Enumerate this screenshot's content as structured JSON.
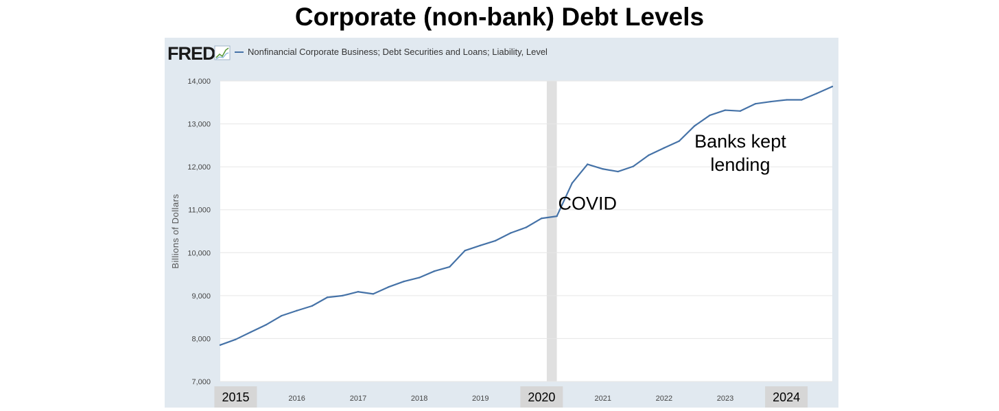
{
  "title": "Corporate (non-bank) Debt Levels",
  "source_logo": "FRED",
  "chart_data": {
    "type": "line",
    "series": [
      {
        "name": "Nonfinancial Corporate Business; Debt Securities and Loans; Liability, Level",
        "color": "#4572a7",
        "points": [
          [
            "2014-10-01",
            7850
          ],
          [
            "2015-01-01",
            7980
          ],
          [
            "2015-04-01",
            8150
          ],
          [
            "2015-07-01",
            8320
          ],
          [
            "2015-10-01",
            8530
          ],
          [
            "2016-01-01",
            8650
          ],
          [
            "2016-04-01",
            8760
          ],
          [
            "2016-07-01",
            8960
          ],
          [
            "2016-10-01",
            9000
          ],
          [
            "2017-01-01",
            9090
          ],
          [
            "2017-04-01",
            9040
          ],
          [
            "2017-07-01",
            9200
          ],
          [
            "2017-10-01",
            9330
          ],
          [
            "2018-01-01",
            9420
          ],
          [
            "2018-04-01",
            9570
          ],
          [
            "2018-07-01",
            9670
          ],
          [
            "2018-10-01",
            10050
          ],
          [
            "2019-01-01",
            10170
          ],
          [
            "2019-04-01",
            10280
          ],
          [
            "2019-07-01",
            10460
          ],
          [
            "2019-10-01",
            10590
          ],
          [
            "2020-01-01",
            10800
          ],
          [
            "2020-04-01",
            10850
          ],
          [
            "2020-07-01",
            11620
          ],
          [
            "2020-10-01",
            12060
          ],
          [
            "2021-01-01",
            11950
          ],
          [
            "2021-04-01",
            11890
          ],
          [
            "2021-07-01",
            12010
          ],
          [
            "2021-10-01",
            12270
          ],
          [
            "2022-01-01",
            12440
          ],
          [
            "2022-04-01",
            12600
          ],
          [
            "2022-07-01",
            12950
          ],
          [
            "2022-10-01",
            13200
          ],
          [
            "2023-01-01",
            13320
          ],
          [
            "2023-04-01",
            13300
          ],
          [
            "2023-07-01",
            13470
          ],
          [
            "2023-10-01",
            13520
          ],
          [
            "2024-01-01",
            13560
          ],
          [
            "2024-04-01",
            13560
          ],
          [
            "2024-07-01",
            13710
          ],
          [
            "2024-10-01",
            13870
          ]
        ]
      }
    ],
    "ylabel": "Billions of Dollars",
    "ylim": [
      7000,
      14000
    ],
    "y_ticks": [
      7000,
      8000,
      9000,
      10000,
      11000,
      12000,
      13000,
      14000
    ],
    "y_tick_labels": [
      "7,000",
      "8,000",
      "9,000",
      "10,000",
      "11,000",
      "12,000",
      "13,000",
      "14,000"
    ],
    "xlim": [
      "2014-10-01",
      "2024-10-01"
    ],
    "x_ticks": [
      {
        "label": "2015",
        "date": "2015-01-01",
        "highlight": true
      },
      {
        "label": "2016",
        "date": "2016-01-01",
        "highlight": false
      },
      {
        "label": "2017",
        "date": "2017-01-01",
        "highlight": false
      },
      {
        "label": "2018",
        "date": "2018-01-01",
        "highlight": false
      },
      {
        "label": "2019",
        "date": "2019-01-01",
        "highlight": false
      },
      {
        "label": "2020",
        "date": "2020-01-01",
        "highlight": true
      },
      {
        "label": "2021",
        "date": "2021-01-01",
        "highlight": false
      },
      {
        "label": "2022",
        "date": "2022-01-01",
        "highlight": false
      },
      {
        "label": "2023",
        "date": "2023-01-01",
        "highlight": false
      },
      {
        "label": "2024",
        "date": "2024-01-01",
        "highlight": true
      }
    ],
    "recession_band": {
      "start": "2020-02-01",
      "end": "2020-04-01",
      "color": "#e0e0e0"
    },
    "annotations": [
      {
        "text": "COVID",
        "lines": [
          "COVID"
        ],
        "date": "2020-10-01",
        "value": 11000
      },
      {
        "text": "Banks kept lending",
        "lines": [
          "Banks kept",
          "lending"
        ],
        "date": "2023-04-01",
        "value": 12450
      }
    ],
    "grid": true,
    "legend_position": "top-left"
  },
  "colors": {
    "frame_bg": "#e1e9f0",
    "plot_bg": "#ffffff",
    "grid": "#e6e6e6",
    "line": "#4572a7",
    "year_highlight_bg": "#d6d6d6"
  }
}
